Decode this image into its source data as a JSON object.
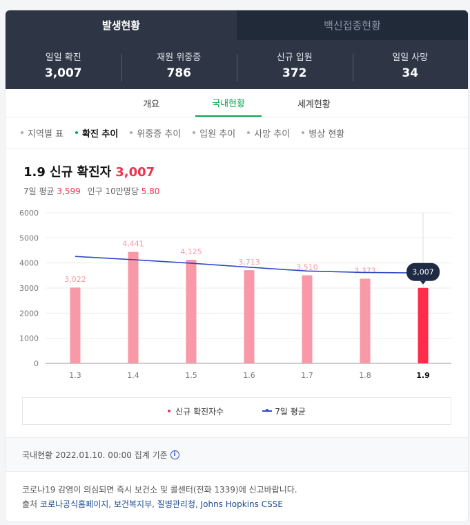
{
  "top_tabs": [
    {
      "label": "발생현황"
    },
    {
      "label": "백신접종현황"
    }
  ],
  "stats": [
    {
      "label": "일일 확진",
      "value": "3,007"
    },
    {
      "label": "재원 위중증",
      "value": "786"
    },
    {
      "label": "신규 입원",
      "value": "372"
    },
    {
      "label": "일일 사망",
      "value": "34"
    }
  ],
  "sub_tabs": [
    {
      "label": "개요"
    },
    {
      "label": "국내현황"
    },
    {
      "label": "세계현황"
    }
  ],
  "filters": [
    {
      "label": "지역별 표"
    },
    {
      "label": "확진 추이"
    },
    {
      "label": "위중증 추이"
    },
    {
      "label": "입원 추이"
    },
    {
      "label": "사망 추이"
    },
    {
      "label": "병상 현황"
    }
  ],
  "chart_header": {
    "title": "1.9 신규 확진자",
    "value": "3,007",
    "avg_label": "7일 평균",
    "avg_value": "3,599",
    "per_label": "인구 10만명당",
    "per_value": "5.80"
  },
  "chart_data": {
    "type": "bar",
    "categories": [
      "1.3",
      "1.4",
      "1.5",
      "1.6",
      "1.7",
      "1.8",
      "1.9"
    ],
    "series": [
      {
        "name": "신규 확진자수",
        "type": "bar",
        "values": [
          3022,
          4441,
          4125,
          3713,
          3510,
          3373,
          3007
        ],
        "labels": [
          "3,022",
          "4,441",
          "4,125",
          "3,713",
          "3,510",
          "3,373",
          "3,007"
        ]
      },
      {
        "name": "7일 평균",
        "type": "line",
        "values": [
          4260,
          4130,
          3990,
          3830,
          3680,
          3620,
          3599
        ]
      }
    ],
    "yticks": [
      "0",
      "1000",
      "2000",
      "3000",
      "4000",
      "5000",
      "6000"
    ],
    "ylim": [
      0,
      6000
    ],
    "highlight_index": 6,
    "tooltip": "3,007",
    "colors": {
      "bar": "#f998a6",
      "bar_highlight": "#fe2c4a",
      "line": "#2f4bc4",
      "tooltip_bg": "#1f2b45"
    }
  },
  "legend": [
    {
      "label": "신규 확진자수"
    },
    {
      "label": "7일 평균"
    }
  ],
  "footer": {
    "basis": "국내현황 2022.01.10. 00:00 집계 기준",
    "info_icon": "i",
    "notice": "코로나19 감염이 의심되면 즉시 보건소 및 콜센터(전화 1339)에 신고바랍니다.",
    "source_label": "출처",
    "sources": [
      "코로나공식홈페이지",
      "보건복지부",
      "질병관리청",
      "Johns Hopkins CSSE"
    ]
  }
}
